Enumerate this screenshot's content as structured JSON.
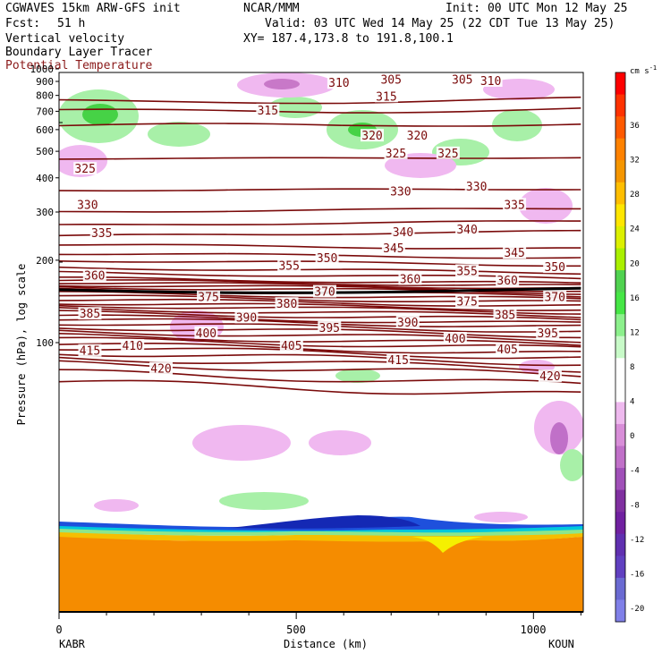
{
  "header": {
    "title_line1": "CGWAVES 15km ARW-GFS init",
    "source": "NCAR/MMM",
    "init": "Init: 00 UTC Mon 12 May 25",
    "fcst_label": "Fcst:",
    "fcst_value": "51 h",
    "valid": "Valid: 03 UTC Wed 14 May 25 (22 CDT Tue 13 May 25)",
    "field1": "Vertical velocity",
    "field2": "Boundary Layer Tracer",
    "field3": "Potential Temperature",
    "xy": "XY= 187.4,173.8 to 191.8,100.1"
  },
  "colors": {
    "theta": "#7a0a0a",
    "field3_text": "#8b1a1a",
    "tracer_orange": "#f58c00"
  },
  "colorbar": {
    "unit": "cm s",
    "unit_sup": "-1",
    "labels": [
      "36",
      "32",
      "28",
      "24",
      "20",
      "16",
      "12",
      "8",
      "4",
      "0",
      "-4",
      "-8",
      "-12",
      "-16",
      "-20"
    ],
    "colors": [
      "#ff0000",
      "#ff3200",
      "#ff5a00",
      "#ff8200",
      "#f59600",
      "#ffbe00",
      "#ffe600",
      "#dcf000",
      "#aaf000",
      "#50d250",
      "#46e646",
      "#8cf08c",
      "#c8fac8",
      "#ffffff",
      "#ffffff",
      "#eeb9ee",
      "#d88ed8",
      "#c070c8",
      "#a050b8",
      "#8030a0",
      "#7020a0",
      "#6030b0",
      "#6040c0",
      "#6a6ad2",
      "#8080e8"
    ]
  },
  "chart_data": {
    "type": "cross-section",
    "title": "Vertical velocity / Boundary Layer Tracer / Potential Temperature",
    "xlabel": "Distance (km)",
    "ylabel": "Pressure (hPa), log scale",
    "x_ticks": [
      "0",
      "500",
      "1000"
    ],
    "y_ticks": [
      "100",
      "200",
      "300",
      "400",
      "500",
      "600",
      "700",
      "800",
      "900",
      "1000"
    ],
    "xlim": [
      0,
      1105
    ],
    "start_station": "KABR",
    "end_station": "KOUN",
    "theta_labels": [
      {
        "t": "420",
        "x": 215,
        "p": 80
      },
      {
        "t": "420",
        "x": 1035,
        "p": 75
      },
      {
        "t": "415",
        "x": 65,
        "p": 93
      },
      {
        "t": "415",
        "x": 715,
        "p": 86
      },
      {
        "t": "410",
        "x": 155,
        "p": 97
      },
      {
        "t": "405",
        "x": 490,
        "p": 97
      },
      {
        "t": "405",
        "x": 945,
        "p": 94
      },
      {
        "t": "400",
        "x": 310,
        "p": 108
      },
      {
        "t": "400",
        "x": 835,
        "p": 103
      },
      {
        "t": "395",
        "x": 570,
        "p": 113
      },
      {
        "t": "395",
        "x": 1030,
        "p": 108
      },
      {
        "t": "390",
        "x": 395,
        "p": 123
      },
      {
        "t": "390",
        "x": 735,
        "p": 118
      },
      {
        "t": "385",
        "x": 65,
        "p": 127
      },
      {
        "t": "385",
        "x": 940,
        "p": 126
      },
      {
        "t": "380",
        "x": 480,
        "p": 138
      },
      {
        "t": "375",
        "x": 315,
        "p": 146
      },
      {
        "t": "375",
        "x": 860,
        "p": 141
      },
      {
        "t": "370",
        "x": 1045,
        "p": 146
      },
      {
        "t": "370",
        "x": 560,
        "p": 153
      },
      {
        "t": "360",
        "x": 75,
        "p": 175
      },
      {
        "t": "360",
        "x": 740,
        "p": 170
      },
      {
        "t": "360",
        "x": 945,
        "p": 168
      },
      {
        "t": "355",
        "x": 485,
        "p": 190
      },
      {
        "t": "355",
        "x": 860,
        "p": 182
      },
      {
        "t": "350",
        "x": 565,
        "p": 203
      },
      {
        "t": "350",
        "x": 1045,
        "p": 188
      },
      {
        "t": "345",
        "x": 705,
        "p": 220
      },
      {
        "t": "345",
        "x": 960,
        "p": 212
      },
      {
        "t": "340",
        "x": 725,
        "p": 252
      },
      {
        "t": "340",
        "x": 860,
        "p": 258
      },
      {
        "t": "335",
        "x": 90,
        "p": 250
      },
      {
        "t": "335",
        "x": 960,
        "p": 318
      },
      {
        "t": "330",
        "x": 60,
        "p": 318
      },
      {
        "t": "330",
        "x": 720,
        "p": 355
      },
      {
        "t": "330",
        "x": 880,
        "p": 370
      },
      {
        "t": "325",
        "x": 55,
        "p": 430
      },
      {
        "t": "325",
        "x": 710,
        "p": 490
      },
      {
        "t": "325",
        "x": 820,
        "p": 490
      },
      {
        "t": "320",
        "x": 660,
        "p": 568
      },
      {
        "t": "320",
        "x": 755,
        "p": 568
      },
      {
        "t": "315",
        "x": 440,
        "p": 703
      },
      {
        "t": "315",
        "x": 690,
        "p": 790
      },
      {
        "t": "310",
        "x": 590,
        "p": 885
      },
      {
        "t": "310",
        "x": 910,
        "p": 900
      },
      {
        "t": "305",
        "x": 700,
        "p": 910
      },
      {
        "t": "305",
        "x": 850,
        "p": 910
      }
    ]
  }
}
